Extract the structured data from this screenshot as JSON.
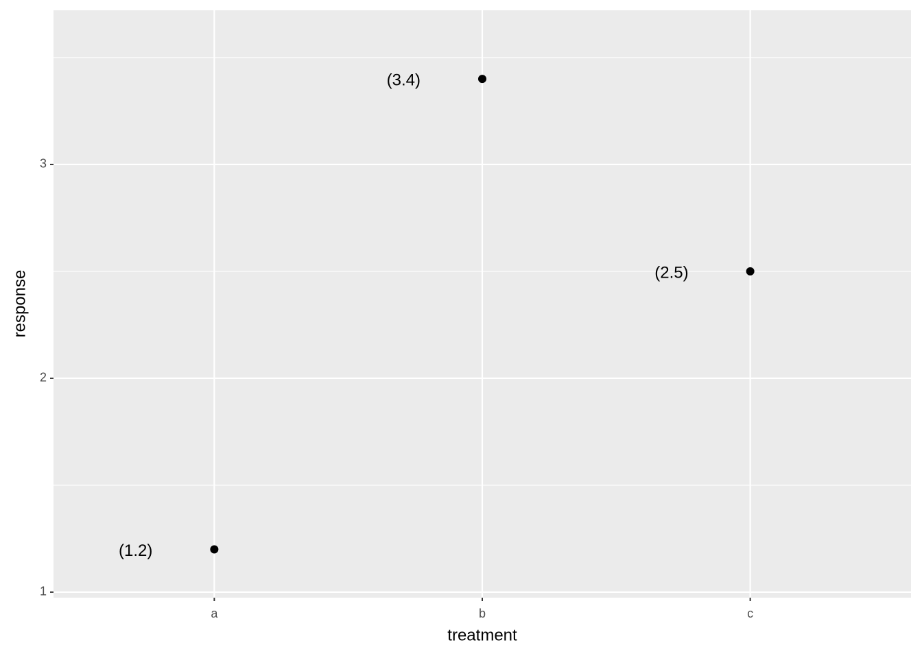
{
  "chart_data": {
    "type": "scatter",
    "x_label": "treatment",
    "y_label": "response",
    "categories": [
      "a",
      "b",
      "c"
    ],
    "values": [
      1.2,
      3.4,
      2.5
    ],
    "value_labels": [
      "(1.2)",
      "(3.4)",
      "(2.5)"
    ],
    "color": "#000000",
    "ylim": [
      0.974,
      3.721
    ],
    "yticks": [
      1,
      2,
      3
    ],
    "y_minor_grid": [
      1.5,
      2.5,
      3.5
    ],
    "grid": true
  }
}
